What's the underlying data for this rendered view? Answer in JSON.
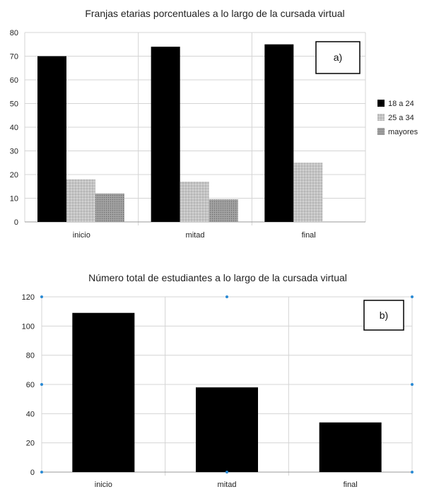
{
  "colors": {
    "series_a_1": "#000000",
    "series_a_2": "#c4c4c4",
    "series_a_3": "#9a9a9a",
    "series_b_1": "#000000",
    "grid": "#d4d4d4",
    "axis": "#999999",
    "handle": "#2a8ad4"
  },
  "chart_data": [
    {
      "type": "bar",
      "title": "Franjas etarias porcentuales a lo largo de la cursada virtual",
      "panel_label": "a)",
      "categories": [
        "inicio",
        "mitad",
        "final"
      ],
      "series": [
        {
          "name": "18 a 24",
          "values": [
            70,
            74,
            75
          ]
        },
        {
          "name": "25 a 34",
          "values": [
            18,
            17,
            25
          ]
        },
        {
          "name": "mayores",
          "values": [
            12,
            9.5,
            0
          ]
        }
      ],
      "yticks": [
        "0",
        "10",
        "20",
        "30",
        "40",
        "50",
        "60",
        "70",
        "80"
      ],
      "ylim": [
        0,
        80
      ],
      "grid": true,
      "legend": "right"
    },
    {
      "type": "bar",
      "title": "Número total de estudiantes a lo largo de la cursada virtual",
      "panel_label": "b)",
      "categories": [
        "inicio",
        "mitad",
        "final"
      ],
      "series": [
        {
          "values": [
            109,
            58,
            34
          ]
        }
      ],
      "yticks": [
        "0",
        "20",
        "40",
        "60",
        "80",
        "100",
        "120"
      ],
      "ylim": [
        0,
        120
      ],
      "grid": true,
      "legend": "none"
    }
  ]
}
